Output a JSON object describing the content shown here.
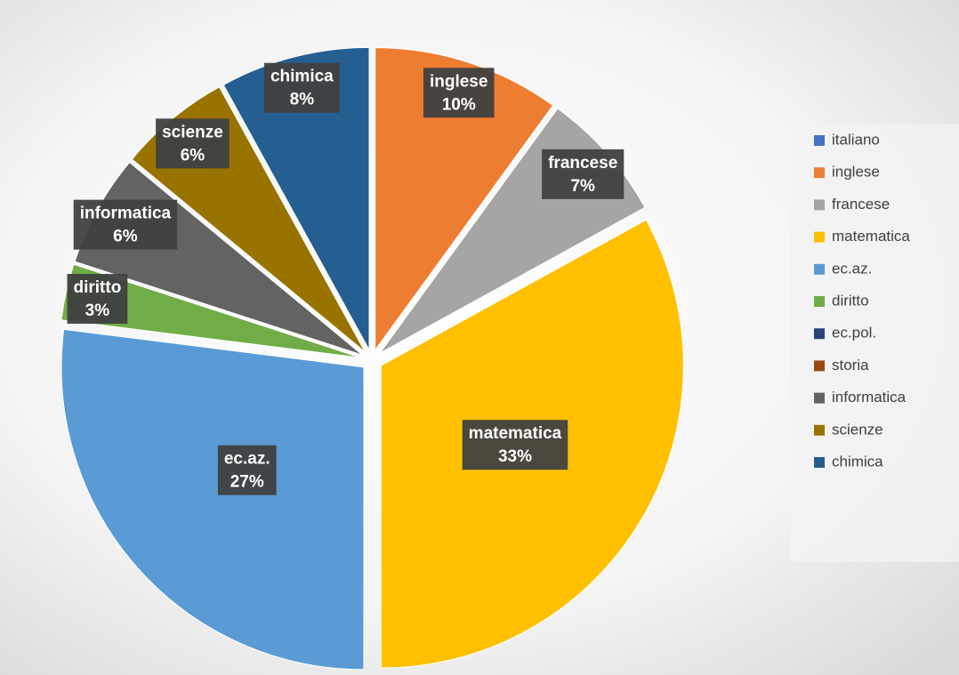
{
  "chart_data": {
    "type": "pie",
    "categories": [
      "italiano",
      "inglese",
      "francese",
      "matematica",
      "ec.az.",
      "diritto",
      "ec.pol.",
      "storia",
      "informatica",
      "scienze",
      "chimica"
    ],
    "values": [
      0,
      10,
      7,
      33,
      27,
      3,
      0,
      0,
      6,
      6,
      8
    ],
    "value_labels": [
      null,
      "10%",
      "7%",
      "33%",
      "27%",
      "3%",
      null,
      null,
      "6%",
      "6%",
      "8%"
    ],
    "colors": [
      "#4472c4",
      "#ed7d31",
      "#a5a5a5",
      "#ffc000",
      "#5b9bd5",
      "#70ad47",
      "#264478",
      "#9e480e",
      "#636363",
      "#997300",
      "#255e91"
    ],
    "legend": "right"
  }
}
